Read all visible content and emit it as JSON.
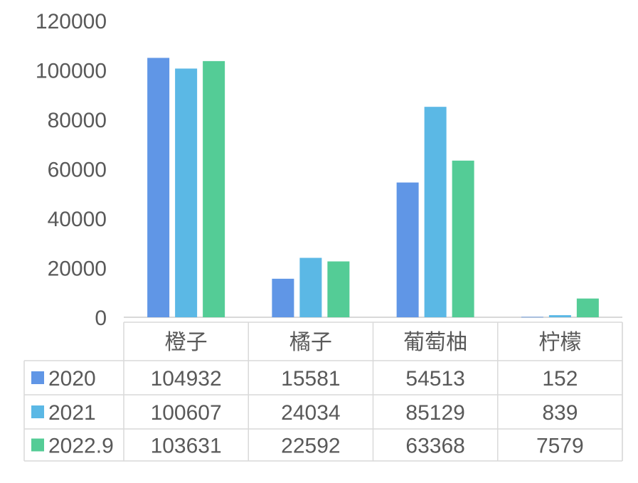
{
  "chart_data": {
    "type": "bar",
    "title": "",
    "xlabel": "",
    "ylabel": "",
    "categories": [
      "橙子",
      "橘子",
      "葡萄柚",
      "柠檬"
    ],
    "series": [
      {
        "name": "2020",
        "values": [
          104932,
          15581,
          54513,
          152
        ],
        "color": "#6096e6"
      },
      {
        "name": "2021",
        "values": [
          100607,
          24034,
          85129,
          839
        ],
        "color": "#5bb8e5"
      },
      {
        "name": "2022.9",
        "values": [
          103631,
          22592,
          63368,
          7579
        ],
        "color": "#54cc96"
      }
    ],
    "ylim": [
      0,
      120000
    ],
    "yticks": [
      "0",
      "20000",
      "40000",
      "60000",
      "80000",
      "100000",
      "120000"
    ],
    "grid": false,
    "legend": "data-table",
    "data_table": true
  }
}
